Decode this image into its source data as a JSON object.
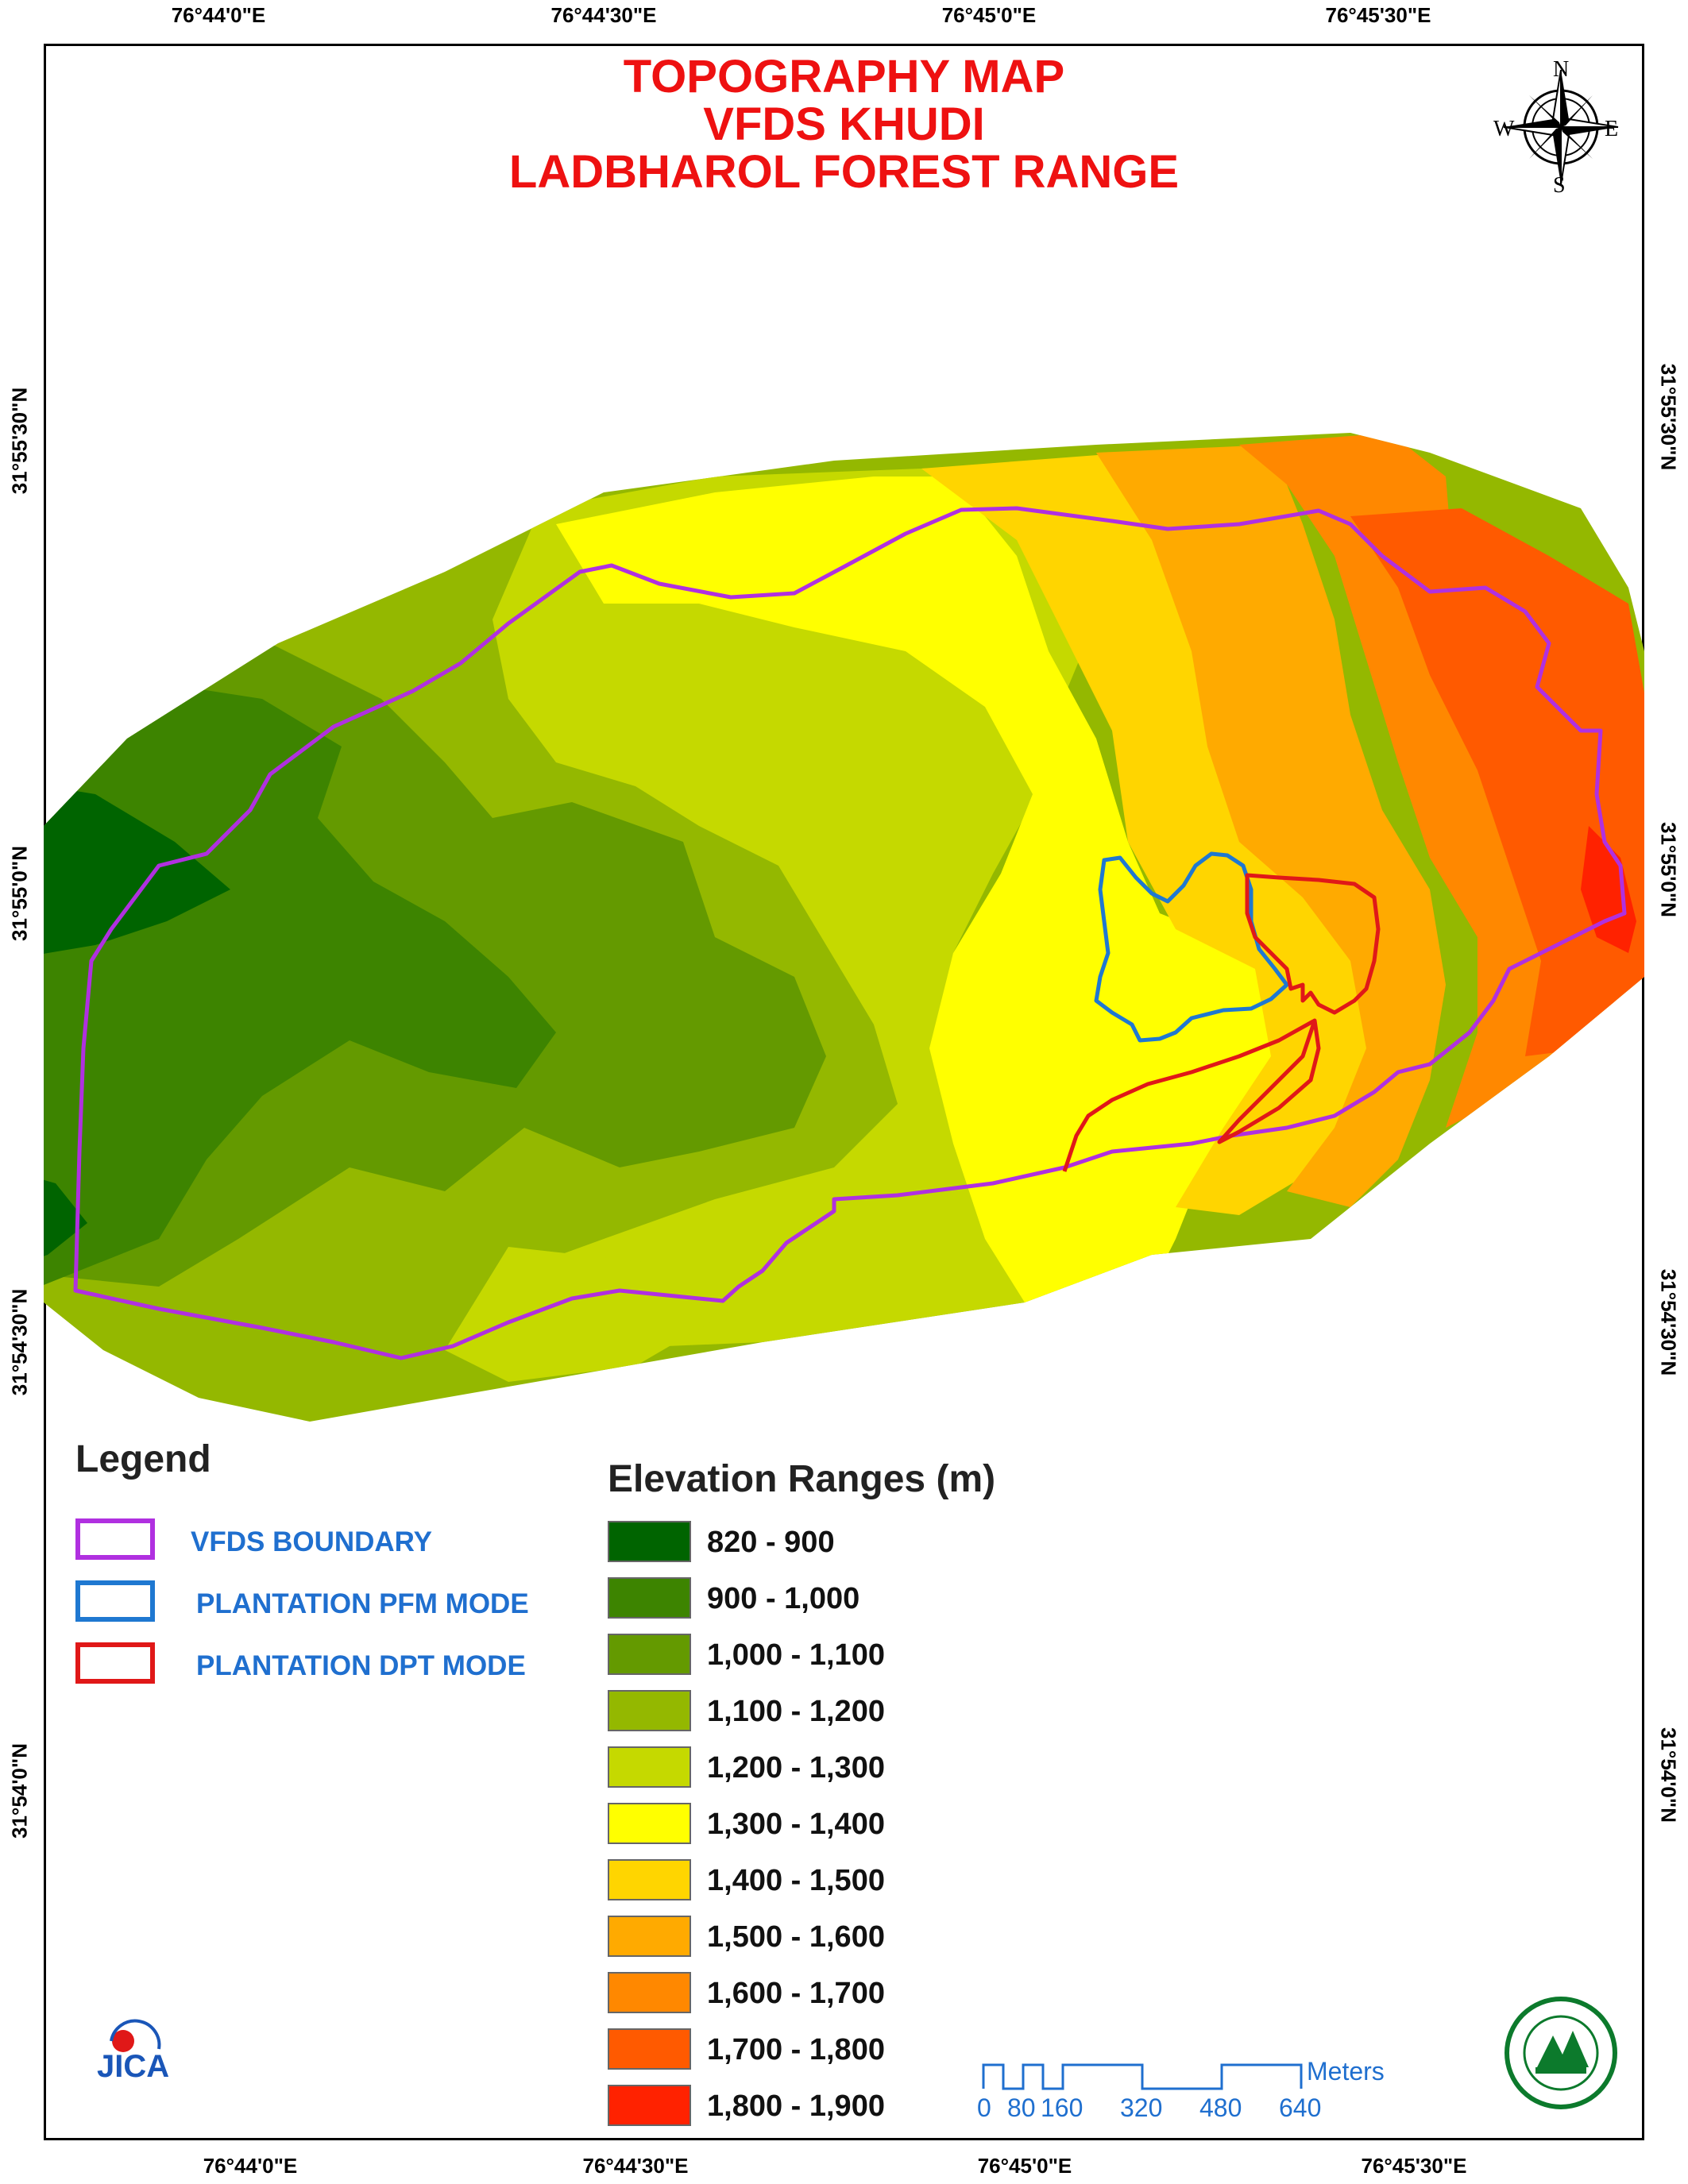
{
  "title": {
    "line1": "TOPOGRAPHY MAP",
    "line2": "VFDS KHUDI",
    "line3": "LADBHAROL FOREST RANGE"
  },
  "graticule": {
    "top_longitudes": [
      "76°44'0\"E",
      "76°44'30\"E",
      "76°45'0\"E",
      "76°45'30\"E"
    ],
    "bottom_longitudes": [
      "76°44'0\"E",
      "76°44'30\"E",
      "76°45'0\"E",
      "76°45'30\"E"
    ],
    "left_latitudes": [
      "31°55'30\"N",
      "31°55'0\"N",
      "31°54'30\"N",
      "31°54'0\"N"
    ],
    "right_latitudes": [
      "31°55'30\"N",
      "31°55'0\"N",
      "31°54'30\"N",
      "31°54'0\"N"
    ]
  },
  "compass": {
    "n": "N",
    "s": "S",
    "e": "E",
    "w": "W"
  },
  "legend": {
    "title": "Legend",
    "items": [
      {
        "label": "VFDS BOUNDARY",
        "color": "#b030e0"
      },
      {
        "label": "PLANTATION PFM MODE",
        "color": "#1f78d1"
      },
      {
        "label": "PLANTATION DPT MODE",
        "color": "#e01818"
      }
    ]
  },
  "elevation": {
    "title": "Elevation Ranges (m)",
    "ranges": [
      {
        "label": "820 - 900",
        "color": "#006400"
      },
      {
        "label": "900 - 1,000",
        "color": "#3d8400"
      },
      {
        "label": "1,000 - 1,100",
        "color": "#649a00"
      },
      {
        "label": "1,100 - 1,200",
        "color": "#94b800"
      },
      {
        "label": "1,200 - 1,300",
        "color": "#c5d900"
      },
      {
        "label": "1,300 - 1,400",
        "color": "#ffff00"
      },
      {
        "label": "1,400 - 1,500",
        "color": "#ffd500"
      },
      {
        "label": "1,500 - 1,600",
        "color": "#ffaa00"
      },
      {
        "label": "1,600 - 1,700",
        "color": "#ff8800"
      },
      {
        "label": "1,700 - 1,800",
        "color": "#ff5a00"
      },
      {
        "label": "1,800 - 1,900",
        "color": "#ff2200"
      }
    ]
  },
  "scale_bar": {
    "unit": "Meters",
    "ticks": [
      "0",
      "80",
      "160",
      "320",
      "480",
      "640"
    ]
  },
  "logos": {
    "left": "jica-logo",
    "left_text": "JICA",
    "right": "forest-department-seal"
  }
}
